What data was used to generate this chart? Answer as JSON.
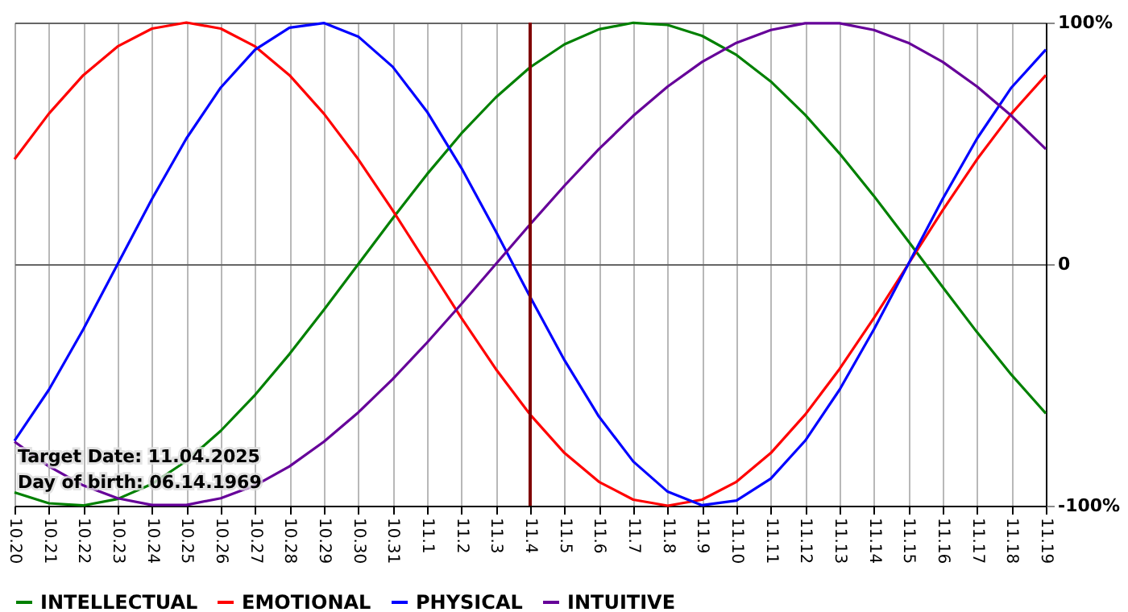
{
  "chart_data": {
    "type": "line",
    "categories": [
      "10.20",
      "10.21",
      "10.22",
      "10.23",
      "10.24",
      "10.25",
      "10.26",
      "10.27",
      "10.28",
      "10.29",
      "10.30",
      "10.31",
      "11.1",
      "11.2",
      "11.3",
      "11.4",
      "11.5",
      "11.6",
      "11.7",
      "11.8",
      "11.9",
      "11.10",
      "11.11",
      "11.12",
      "11.13",
      "11.14",
      "11.15",
      "11.16",
      "11.17",
      "11.18",
      "11.19"
    ],
    "series": [
      {
        "name": "INTELLECTUAL",
        "color": "#008000",
        "values": [
          -94.5,
          -99.0,
          -99.9,
          -97.2,
          -91.0,
          -81.5,
          -69.0,
          -54.1,
          -37.2,
          -18.9,
          0,
          18.9,
          37.2,
          54.1,
          69.0,
          81.5,
          91.0,
          97.2,
          99.9,
          99.0,
          94.5,
          86.6,
          75.6,
          61.8,
          45.8,
          28.2,
          9.5,
          -9.5,
          -28.2,
          -45.8,
          -61.8
        ]
      },
      {
        "name": "EMOTIONAL",
        "color": "#ff0000",
        "values": [
          43.4,
          62.3,
          78.2,
          90.1,
          97.5,
          100,
          97.5,
          90.1,
          78.2,
          62.3,
          43.4,
          22.3,
          0,
          -22.3,
          -43.4,
          -62.3,
          -78.2,
          -90.1,
          -97.5,
          -100,
          -97.5,
          -90.1,
          -78.2,
          -62.3,
          -43.4,
          -22.3,
          0,
          22.3,
          43.4,
          62.3,
          78.2
        ]
      },
      {
        "name": "PHYSICAL",
        "color": "#0000ff",
        "values": [
          -73.1,
          -52.0,
          -27.0,
          0,
          27.0,
          52.0,
          73.1,
          88.8,
          97.9,
          99.8,
          94.2,
          81.7,
          63.1,
          39.8,
          13.6,
          -13.6,
          -39.8,
          -63.1,
          -81.7,
          -94.2,
          -99.8,
          -97.9,
          -88.8,
          -73.1,
          -52.0,
          -27.0,
          0,
          27.0,
          52.0,
          73.1,
          88.8
        ]
      },
      {
        "name": "INTUITIVE",
        "color": "#660099",
        "values": [
          -73.5,
          -83.7,
          -91.6,
          -96.9,
          -99.7,
          -99.7,
          -96.9,
          -91.6,
          -83.7,
          -73.5,
          -61.4,
          -47.6,
          -32.5,
          -16.5,
          0,
          16.5,
          32.5,
          47.6,
          61.4,
          73.5,
          83.7,
          91.6,
          96.9,
          99.7,
          99.7,
          96.9,
          91.6,
          83.7,
          73.5,
          61.4,
          47.6
        ]
      }
    ],
    "ylim": [
      -100,
      100
    ],
    "yticks": [
      {
        "value": 100,
        "label": "100%"
      },
      0,
      {
        "value": -100,
        "label": "-100%"
      }
    ],
    "grid": true,
    "legend": "bottom",
    "marker": "none",
    "line_style": "solid",
    "ref_lines": [
      {
        "axis": "x",
        "value": "11.4",
        "color": "#800000"
      }
    ],
    "annotations": [
      "Target Date: 11.04.2025",
      "Day of birth: 06.14.1969"
    ]
  }
}
